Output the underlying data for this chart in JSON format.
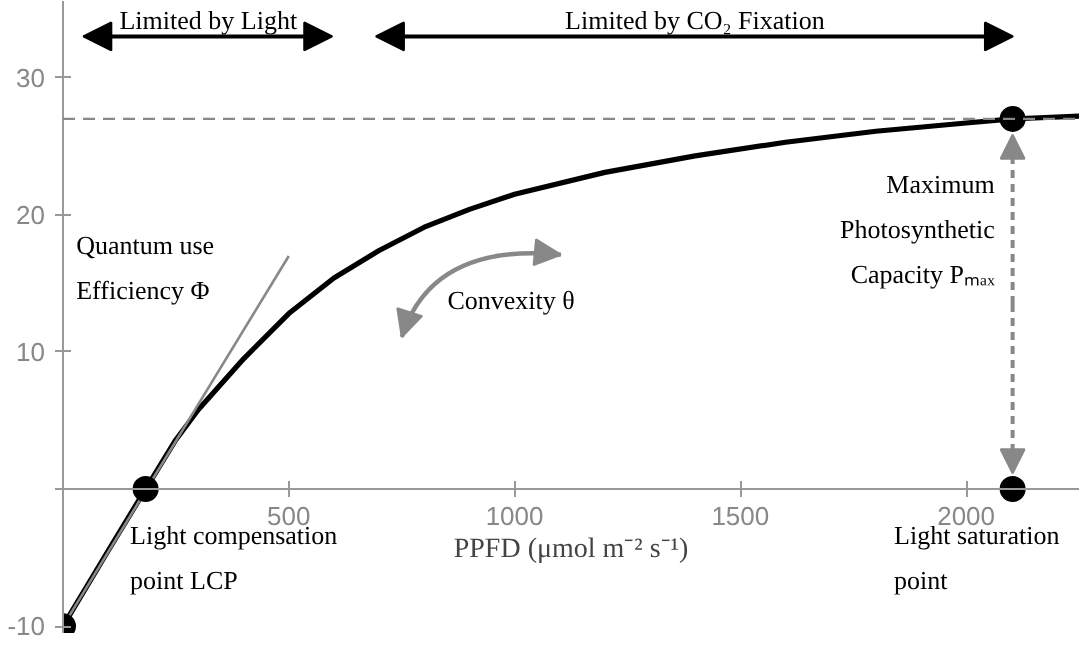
{
  "chart_data": {
    "type": "line",
    "xlabel": "PPFD (μmol m⁻² s⁻¹)",
    "xlim": [
      0,
      2250
    ],
    "ylim": [
      -10.5,
      35.6
    ],
    "xticks": [
      {
        "value": 0,
        "label": null
      },
      500,
      1000,
      1500,
      2000
    ],
    "yticks": [
      -10,
      {
        "value": 0,
        "label": null
      },
      10,
      20,
      30
    ],
    "grid": false,
    "series": [
      {
        "color": "#000000",
        "x": [
          0,
          100,
          183,
          250,
          300,
          400,
          500,
          600,
          700,
          800,
          900,
          1000,
          1200,
          1400,
          1600,
          1800,
          2000,
          2103,
          2250
        ],
        "values": [
          -10,
          -4.5,
          0,
          3.6,
          5.8,
          9.5,
          12.8,
          15.4,
          17.4,
          19.1,
          20.4,
          21.5,
          23.1,
          24.3,
          25.3,
          26.1,
          26.7,
          27,
          27.2
        ]
      },
      {
        "color": "#888888",
        "x": [
          0,
          500
        ],
        "values": [
          -10,
          17
        ]
      },
      {
        "type": "scatter",
        "color": "#000000",
        "marker": "circle",
        "x": [
          0,
          183,
          2103,
          2103
        ],
        "values": [
          -10,
          0,
          27,
          0
        ]
      }
    ],
    "ref_lines": [
      {
        "axis": "y",
        "value": 27,
        "color": "#888888",
        "line_style": "dashed"
      }
    ],
    "annotations": [
      "Limited by Light",
      "Limited by CO₂ Fixation",
      "Quantum use\nEfficiency Φ",
      "Convexity θ",
      {
        "text": "Maximum\nPhotosynthetic\nCapacity Pₘₐₓ",
        "x": 2103,
        "y": 27
      },
      "Light compensation\npoint LCP",
      "Light saturation\npoint"
    ]
  }
}
